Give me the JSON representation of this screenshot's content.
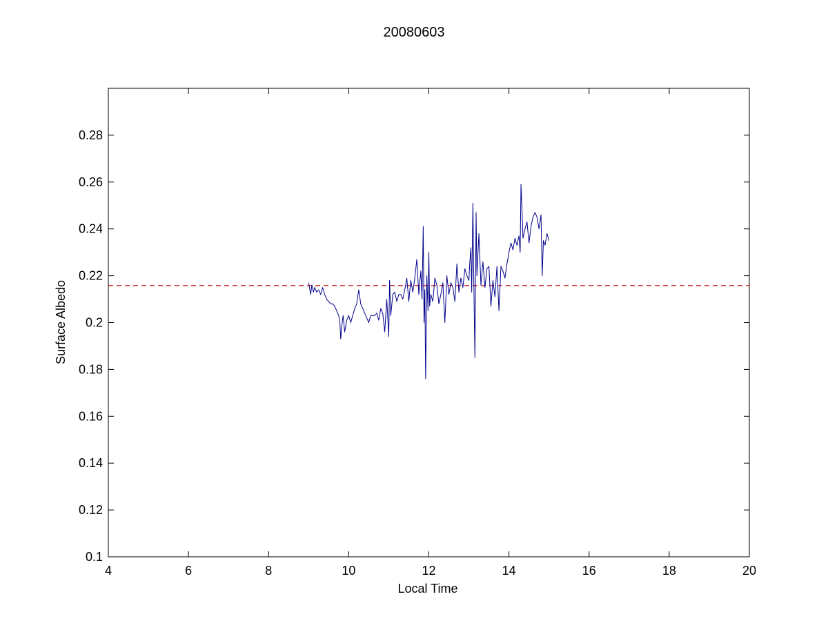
{
  "chart_data": {
    "type": "line",
    "title": "20080603",
    "xlabel": "Local Time",
    "ylabel": "Surface Albedo",
    "xlim": [
      4,
      20
    ],
    "ylim": [
      0.1,
      0.3
    ],
    "xticks": [
      4,
      6,
      8,
      10,
      12,
      14,
      16,
      18,
      20
    ],
    "xtick_labels": [
      "4",
      "6",
      "8",
      "10",
      "12",
      "14",
      "16",
      "18",
      "20"
    ],
    "yticks": [
      0.1,
      0.12,
      0.14,
      0.16,
      0.18,
      0.2,
      0.22,
      0.24,
      0.26,
      0.28
    ],
    "ytick_labels": [
      "0.1",
      "0.12",
      "0.14",
      "0.16",
      "0.18",
      "0.2",
      "0.22",
      "0.24",
      "0.26",
      "0.28"
    ],
    "grid": false,
    "reference_line": {
      "y": 0.2158,
      "color": "#cc0000",
      "style": "dashed"
    },
    "series": [
      {
        "color": "#00008b",
        "x": [
          9.0,
          9.05,
          9.08,
          9.12,
          9.15,
          9.2,
          9.25,
          9.3,
          9.35,
          9.4,
          9.45,
          9.5,
          9.55,
          9.6,
          9.65,
          9.7,
          9.75,
          9.78,
          9.8,
          9.83,
          9.86,
          9.9,
          9.95,
          10.0,
          10.05,
          10.1,
          10.15,
          10.2,
          10.25,
          10.3,
          10.35,
          10.4,
          10.45,
          10.5,
          10.55,
          10.6,
          10.65,
          10.7,
          10.75,
          10.8,
          10.85,
          10.9,
          10.95,
          11.0,
          11.02,
          11.05,
          11.1,
          11.15,
          11.2,
          11.25,
          11.3,
          11.35,
          11.4,
          11.45,
          11.5,
          11.55,
          11.6,
          11.65,
          11.7,
          11.75,
          11.8,
          11.83,
          11.86,
          11.88,
          11.9,
          11.92,
          11.95,
          11.98,
          12.0,
          12.02,
          12.05,
          12.1,
          12.15,
          12.2,
          12.25,
          12.3,
          12.35,
          12.4,
          12.45,
          12.5,
          12.55,
          12.6,
          12.65,
          12.7,
          12.75,
          12.8,
          12.85,
          12.9,
          12.95,
          13.0,
          13.02,
          13.05,
          13.07,
          13.1,
          13.12,
          13.15,
          13.18,
          13.2,
          13.25,
          13.3,
          13.35,
          13.4,
          13.45,
          13.5,
          13.55,
          13.6,
          13.65,
          13.7,
          13.75,
          13.8,
          13.85,
          13.9,
          13.95,
          14.0,
          14.05,
          14.1,
          14.15,
          14.2,
          14.25,
          14.28,
          14.3,
          14.33,
          14.35,
          14.4,
          14.45,
          14.5,
          14.55,
          14.6,
          14.65,
          14.7,
          14.75,
          14.8,
          14.83,
          14.86,
          14.9,
          14.95,
          15.0
        ],
        "y": [
          0.217,
          0.212,
          0.216,
          0.213,
          0.215,
          0.213,
          0.214,
          0.212,
          0.215,
          0.212,
          0.21,
          0.209,
          0.208,
          0.208,
          0.207,
          0.205,
          0.203,
          0.2,
          0.193,
          0.199,
          0.203,
          0.196,
          0.201,
          0.203,
          0.2,
          0.203,
          0.206,
          0.208,
          0.214,
          0.208,
          0.206,
          0.204,
          0.202,
          0.2,
          0.203,
          0.203,
          0.203,
          0.204,
          0.201,
          0.206,
          0.204,
          0.196,
          0.21,
          0.194,
          0.218,
          0.203,
          0.212,
          0.213,
          0.209,
          0.212,
          0.212,
          0.21,
          0.214,
          0.219,
          0.209,
          0.218,
          0.213,
          0.219,
          0.227,
          0.212,
          0.222,
          0.21,
          0.241,
          0.2,
          0.214,
          0.176,
          0.22,
          0.205,
          0.23,
          0.207,
          0.212,
          0.209,
          0.219,
          0.216,
          0.208,
          0.212,
          0.217,
          0.2,
          0.22,
          0.212,
          0.217,
          0.215,
          0.209,
          0.225,
          0.213,
          0.219,
          0.215,
          0.223,
          0.22,
          0.218,
          0.225,
          0.232,
          0.213,
          0.251,
          0.221,
          0.185,
          0.247,
          0.22,
          0.238,
          0.216,
          0.226,
          0.215,
          0.223,
          0.224,
          0.207,
          0.218,
          0.211,
          0.224,
          0.205,
          0.224,
          0.222,
          0.219,
          0.225,
          0.23,
          0.234,
          0.231,
          0.236,
          0.233,
          0.237,
          0.23,
          0.259,
          0.246,
          0.236,
          0.24,
          0.243,
          0.234,
          0.241,
          0.245,
          0.247,
          0.245,
          0.24,
          0.246,
          0.22,
          0.235,
          0.233,
          0.238,
          0.235
        ]
      }
    ]
  }
}
